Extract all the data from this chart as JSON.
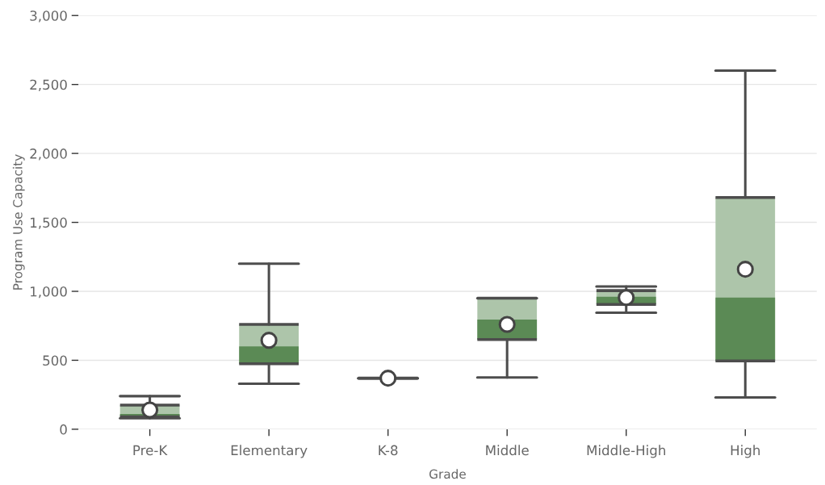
{
  "chart_data": {
    "type": "box",
    "xlabel": "Grade",
    "ylabel": "Program Use Capacity",
    "categories": [
      "Pre-K",
      "Elementary",
      "K-8",
      "Middle",
      "Middle-High",
      "High"
    ],
    "boxes": [
      {
        "low": 80,
        "q1": 90,
        "median": 110,
        "q3": 175,
        "high": 240,
        "mean": 140
      },
      {
        "low": 330,
        "q1": 475,
        "median": 600,
        "q3": 760,
        "high": 1200,
        "mean": 645
      },
      {
        "low": 370,
        "q1": 370,
        "median": 370,
        "q3": 370,
        "high": 370,
        "mean": 370
      },
      {
        "low": 375,
        "q1": 650,
        "median": 795,
        "q3": 950,
        "high": 950,
        "mean": 760
      },
      {
        "low": 845,
        "q1": 905,
        "median": 960,
        "q3": 1005,
        "high": 1035,
        "mean": 955
      },
      {
        "low": 230,
        "q1": 495,
        "median": 955,
        "q3": 1680,
        "high": 2600,
        "mean": 1160
      }
    ],
    "color": "#adc5aa",
    "colors": [
      "#5b8a55",
      "#5b8a55",
      "#4d4d4d",
      "#5b8a55",
      "#5b8a55",
      "#5b8a55"
    ],
    "ylim": [
      0,
      3000
    ],
    "yticks": [
      0,
      {
        "value": 500,
        "label": "500"
      },
      {
        "value": 1000,
        "label": "1,000"
      },
      {
        "value": 1500,
        "label": "1,500"
      },
      {
        "value": 2000,
        "label": "2,000"
      },
      {
        "value": 2500,
        "label": "2,500"
      },
      {
        "value": 3000,
        "label": "3,000"
      }
    ],
    "grid": "y",
    "marker": "circle"
  }
}
